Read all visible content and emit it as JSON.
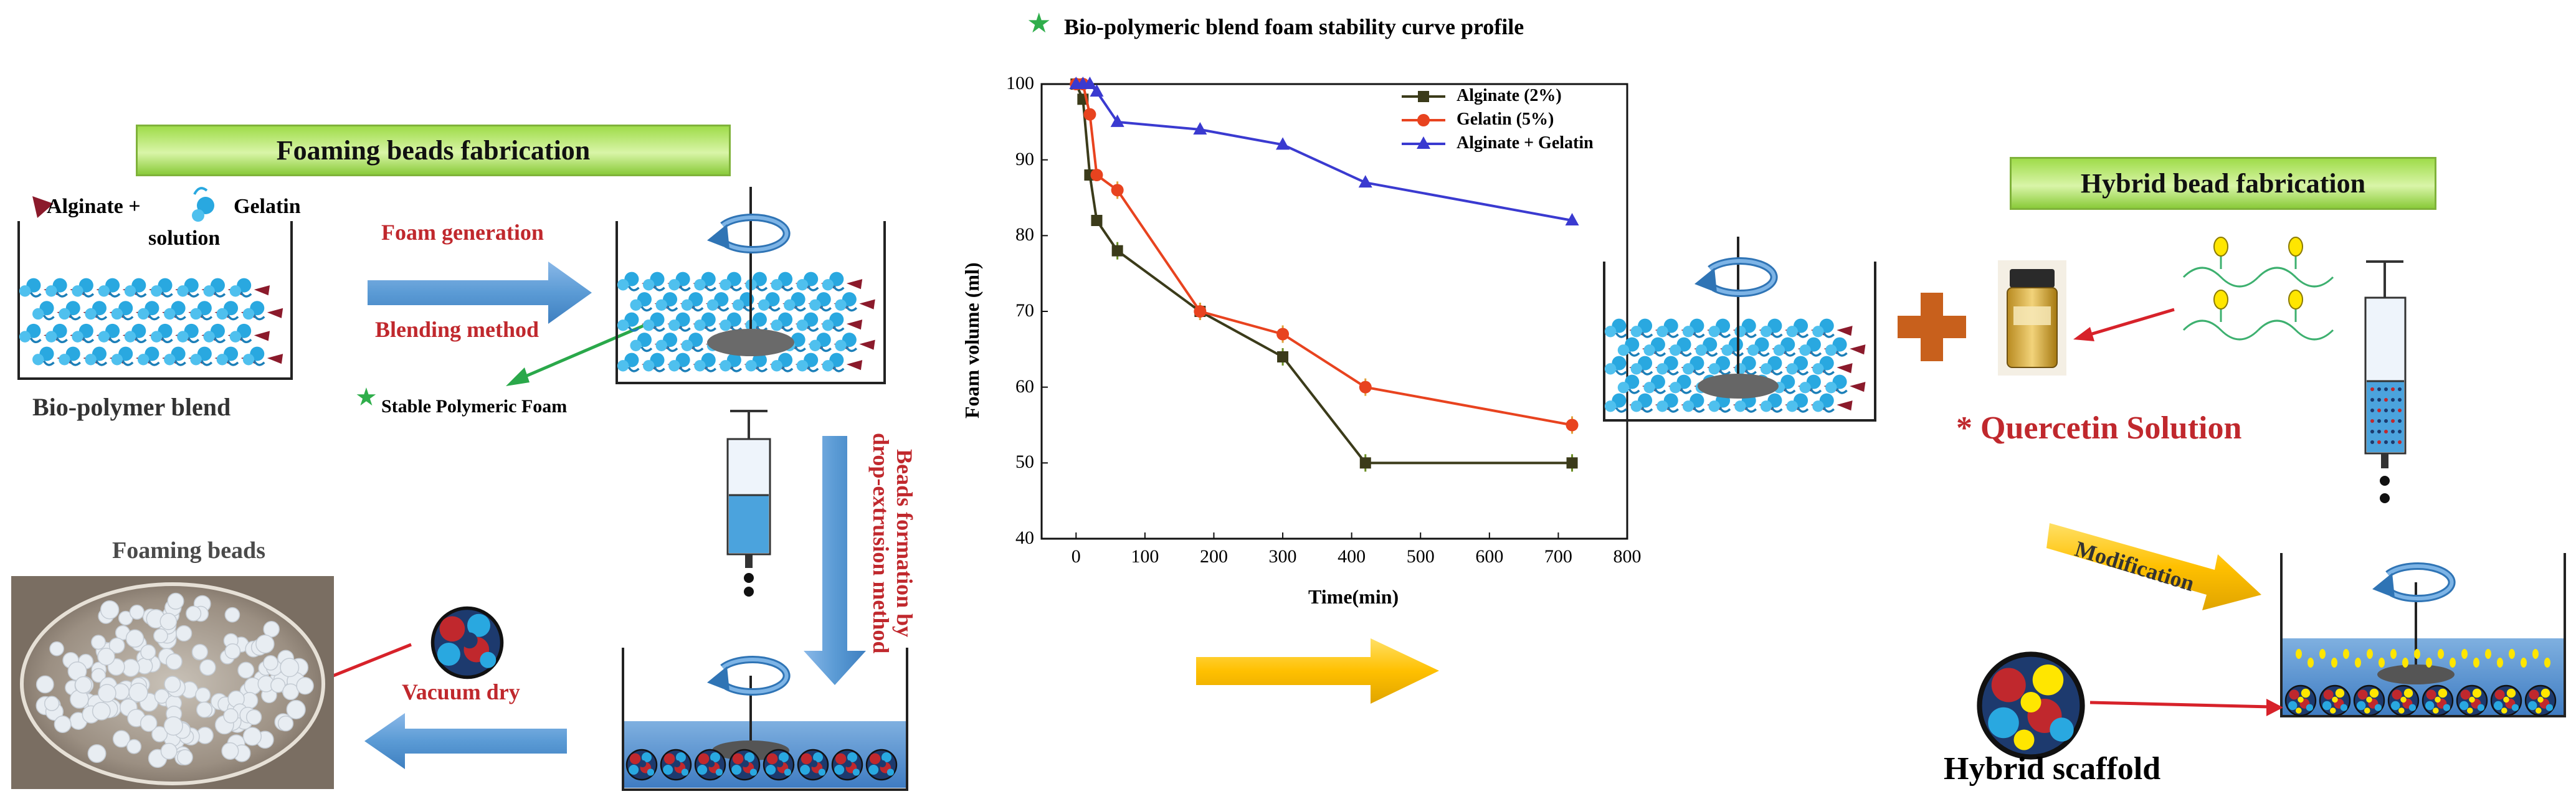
{
  "left_panel": {
    "banner_title": "Foaming beads  fabrication",
    "alginate_label": "Alginate +",
    "gelatin_label": "Gelatin",
    "solution_label": "solution",
    "blend_label": "Bio-polymer blend",
    "foam_generation": "Foam generation",
    "blending_method": "Blending method",
    "stable_foam": "Stable Polymeric Foam",
    "beads_formation_line1": "Beads formation by",
    "beads_formation_line2": "drop-extrusion method",
    "foaming_beads_title": "Foaming beads",
    "vacuum_dry": "Vacuum dry"
  },
  "right_panel": {
    "banner_title": "Hybrid bead fabrication",
    "quercetin": "* Quercetin Solution",
    "modification": "Modification",
    "hybrid_scaffold": "Hybrid  scaffold"
  },
  "colors": {
    "red_text": "#c0282d",
    "blue_arrow": "#5b9bd5",
    "yellow_arrow": "#ffc000",
    "green_arrow": "#2aa84a",
    "alginate_series": "#3b3b1a",
    "gelatin_series": "#e8431f",
    "combined_series": "#3a3ad0"
  },
  "chart_data": {
    "type": "line",
    "title": "Bio-polymeric blend foam stability curve profile",
    "xlabel": "Time(min)",
    "ylabel": "Foam volume  (ml)",
    "xlim": [
      -50,
      800
    ],
    "ylim": [
      40,
      100
    ],
    "xticks": [
      0,
      100,
      200,
      300,
      400,
      500,
      600,
      700,
      800
    ],
    "yticks": [
      40,
      50,
      60,
      70,
      80,
      90,
      100
    ],
    "legend_position": "top-right",
    "series": [
      {
        "name": "Alginate (2%)",
        "color": "#3b3b1a",
        "marker": "square",
        "x": [
          0,
          10,
          20,
          30,
          60,
          180,
          300,
          420,
          720
        ],
        "y": [
          100,
          98,
          88,
          82,
          78,
          70,
          64,
          50,
          50
        ]
      },
      {
        "name": "Gelatin (5%)",
        "color": "#e8431f",
        "marker": "circle",
        "x": [
          0,
          10,
          20,
          30,
          60,
          180,
          300,
          420,
          720
        ],
        "y": [
          100,
          100,
          96,
          88,
          86,
          70,
          67,
          60,
          55
        ]
      },
      {
        "name": "Alginate + Gelatin",
        "color": "#3a3ad0",
        "marker": "triangle",
        "x": [
          0,
          10,
          20,
          30,
          60,
          180,
          300,
          420,
          720
        ],
        "y": [
          100,
          100,
          100,
          99,
          95,
          94,
          92,
          87,
          82
        ]
      }
    ]
  }
}
